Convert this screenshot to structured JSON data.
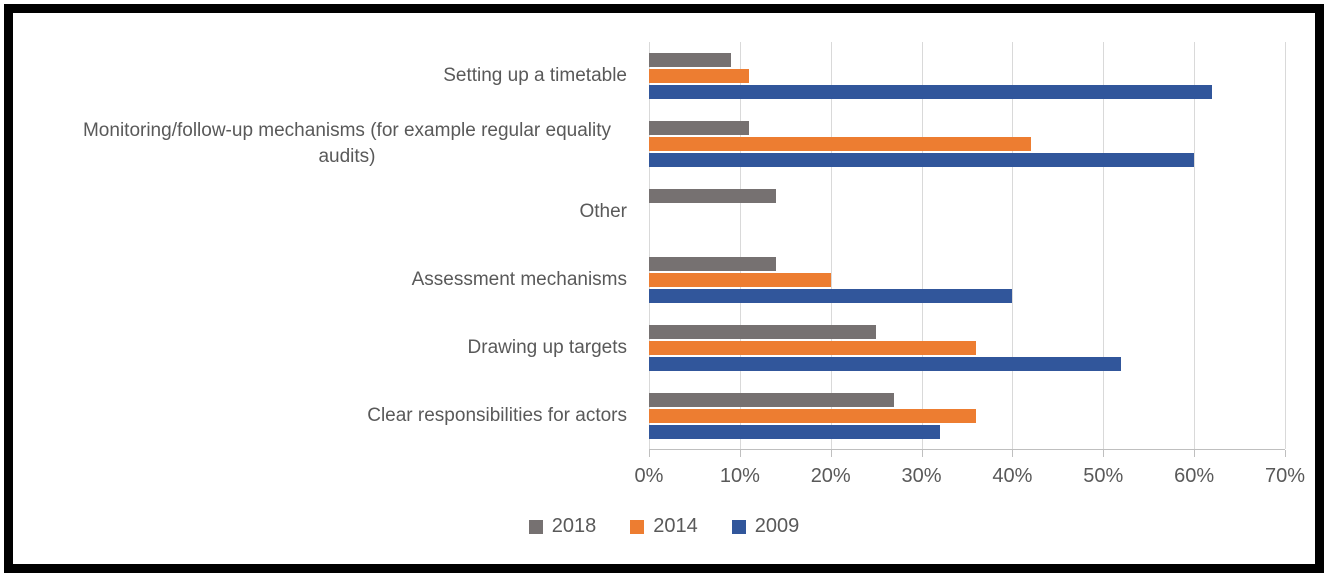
{
  "chart_data": {
    "type": "bar",
    "orientation": "horizontal",
    "title": "",
    "xlabel": "",
    "ylabel": "",
    "categories": [
      "Setting up a timetable",
      "Monitoring/follow-up mechanisms (for example regular equality audits)",
      "Other",
      "Assessment mechanisms",
      "Drawing up targets",
      "Clear responsibilities for actors"
    ],
    "series": [
      {
        "name": "2018",
        "color": "#767171",
        "values": [
          9,
          11,
          14,
          14,
          25,
          27
        ]
      },
      {
        "name": "2014",
        "color": "#ED7D31",
        "values": [
          11,
          42,
          0,
          20,
          36,
          36
        ]
      },
      {
        "name": "2009",
        "color": "#31569B",
        "values": [
          62,
          60,
          0,
          40,
          52,
          32
        ]
      }
    ],
    "x_ticks": [
      "0%",
      "10%",
      "20%",
      "30%",
      "40%",
      "50%",
      "60%",
      "70%"
    ],
    "xlim": [
      0,
      70
    ],
    "grid": true,
    "legend_position": "bottom",
    "gridline_color": "#d9d9d9",
    "axis_line_color": "#bfbfbf",
    "text_color": "#595959"
  }
}
